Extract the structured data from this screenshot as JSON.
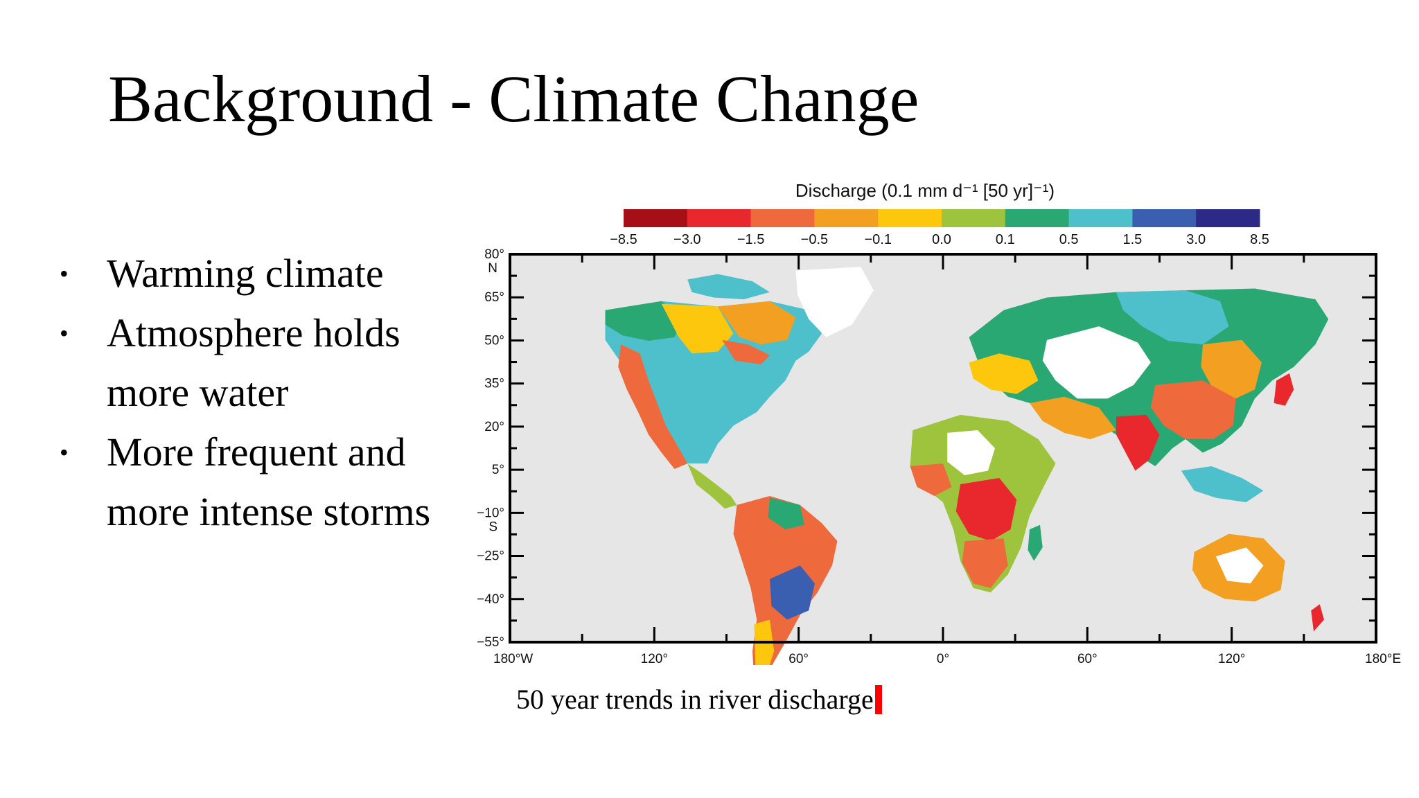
{
  "slide": {
    "title": "Background - Climate Change",
    "bullets": [
      {
        "lines": [
          "Warming climate"
        ]
      },
      {
        "lines": [
          "Atmosphere holds",
          "more water"
        ]
      },
      {
        "lines": [
          "More frequent and",
          "more intense storms"
        ]
      }
    ],
    "bullet_glyph": "•",
    "caption": "50 year trends in river discharge"
  },
  "map": {
    "colorbar_title": "Discharge (0.1 mm d⁻¹ [50 yr]⁻¹)",
    "colorbar_ticks": [
      "−8.5",
      "−3.0",
      "−1.5",
      "−0.5",
      "−0.1",
      "0.0",
      "0.1",
      "0.5",
      "1.5",
      "3.0",
      "8.5"
    ],
    "colorbar_colors": [
      "#a50f15",
      "#e8282d",
      "#ee6a3c",
      "#f29f22",
      "#fcc70c",
      "#9ec43d",
      "#2aa874",
      "#4ec0cc",
      "#3a5fb0",
      "#2c2a86"
    ],
    "lat_ticks": [
      {
        "value": 80,
        "label": "80°",
        "sub": "N"
      },
      {
        "value": 65,
        "label": "65°"
      },
      {
        "value": 50,
        "label": "50°"
      },
      {
        "value": 35,
        "label": "35°"
      },
      {
        "value": 20,
        "label": "20°"
      },
      {
        "value": 5,
        "label": "5°"
      },
      {
        "value": -10,
        "label": "−10°",
        "sub": "S"
      },
      {
        "value": -25,
        "label": "−25°"
      },
      {
        "value": -40,
        "label": "−40°"
      },
      {
        "value": -55,
        "label": "−55°"
      }
    ],
    "lon_ticks": [
      {
        "value": -180,
        "label": "180°W"
      },
      {
        "value": -120,
        "label": "120°"
      },
      {
        "value": -60,
        "label": "60°"
      },
      {
        "value": 0,
        "label": "0°"
      },
      {
        "value": 60,
        "label": "60°"
      },
      {
        "value": 120,
        "label": "120°"
      },
      {
        "value": 180,
        "label": "180°E"
      }
    ],
    "lon_range": [
      -180,
      180
    ],
    "lat_range": [
      -55,
      80
    ],
    "ocean_color": "#e6e6e6",
    "land_nodata_color": "#ffffff"
  }
}
